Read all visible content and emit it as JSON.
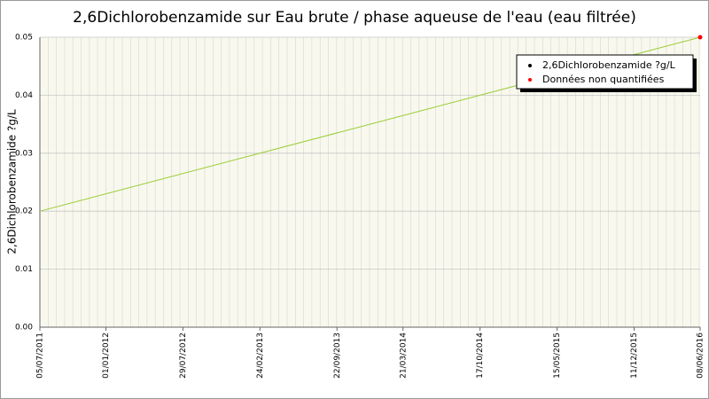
{
  "chart_data": {
    "type": "line",
    "title": "2,6Dichlorobenzamide sur Eau brute / phase aqueuse de l'eau (eau filtrée)",
    "y_label": "2,6Dichlorobenzamide ?g/L",
    "x": [
      "05/07/2011",
      "08/06/2016"
    ],
    "series": [
      {
        "name": "2,6Dichlorobenzamide ?g/L",
        "color": "#99cc33",
        "values": [
          0.02,
          0.05
        ]
      },
      {
        "name": "Données non quantifiées",
        "color": "#ff0000",
        "values": [
          null,
          0.05
        ]
      }
    ],
    "xlim": [
      "05/07/2011",
      "08/06/2016"
    ],
    "xticks": [
      "05/07/2011",
      "01/01/2012",
      "29/07/2012",
      "24/02/2013",
      "22/09/2013",
      "21/03/2014",
      "17/10/2014",
      "15/05/2015",
      "11/12/2015",
      "08/06/2016"
    ],
    "ylim": [
      0,
      0.05
    ],
    "yticks": [
      {
        "value": 0,
        "label": "0.00"
      },
      0.01,
      0.02,
      0.03,
      0.04,
      0.05
    ],
    "grid": true
  }
}
